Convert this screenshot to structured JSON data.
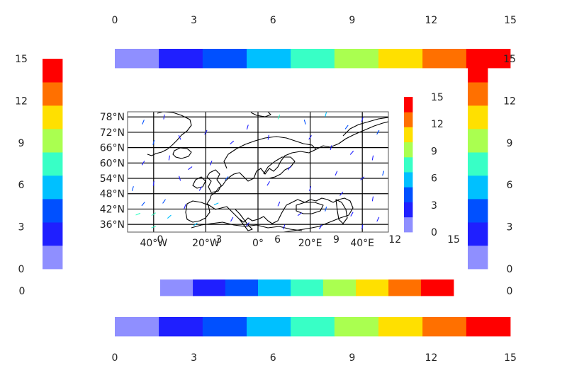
{
  "chart_data": {
    "type": "quiver-map",
    "map": {
      "projection": "PlateCarree",
      "lon_range": [
        -50,
        50
      ],
      "lat_range": [
        33,
        80
      ],
      "lon_ticks": [
        -40,
        -20,
        0,
        20,
        40
      ],
      "lon_tick_labels": [
        "40°W",
        "20°W",
        "0°",
        "20°E",
        "40°E"
      ],
      "lat_ticks": [
        36,
        42,
        48,
        54,
        60,
        66,
        72,
        78
      ],
      "lat_tick_labels": [
        "36°N",
        "42°N",
        "48°N",
        "54°N",
        "60°N",
        "66°N",
        "72°N",
        "78°N"
      ],
      "grid": true,
      "coastlines": true,
      "colormap": "jet",
      "value_range": [
        0,
        15
      ]
    },
    "colorbar": {
      "levels": [
        0,
        1.67,
        3.33,
        5,
        6.67,
        8.33,
        10,
        11.67,
        13.33,
        15
      ],
      "colors": [
        "#8f8fff",
        "#1f1fff",
        "#0050ff",
        "#00c0ff",
        "#38ffc6",
        "#aaff50",
        "#ffe000",
        "#ff7000",
        "#ff0000"
      ],
      "ticks": [
        0,
        3,
        6,
        9,
        12,
        15
      ],
      "tick_labels": [
        "0",
        "3",
        "6",
        "9",
        "12",
        "15"
      ]
    },
    "colorbars": [
      {
        "id": "top",
        "orientation": "horizontal",
        "ticks_side": "top"
      },
      {
        "id": "bottom",
        "orientation": "horizontal",
        "ticks_side": "bottom"
      },
      {
        "id": "left",
        "orientation": "vertical",
        "ticks_side": "left"
      },
      {
        "id": "right",
        "orientation": "vertical",
        "ticks_side": "right"
      },
      {
        "id": "inset-right",
        "orientation": "vertical",
        "ticks_side": "right"
      },
      {
        "id": "inner-bottom",
        "orientation": "horizontal",
        "ticks_side": "top"
      }
    ],
    "extra_labels": [
      {
        "id": "inner-bottom-left-zero",
        "text": "0"
      },
      {
        "id": "inner-bottom-right-zero",
        "text": "0"
      }
    ],
    "arrows": [
      {
        "lon": -46,
        "lat": 40,
        "u": 1.5,
        "v": 0.6,
        "speed": 8
      },
      {
        "lon": -40,
        "lat": 40,
        "u": 1.2,
        "v": 0.8,
        "speed": 7
      },
      {
        "lon": -34,
        "lat": 39,
        "u": 1.0,
        "v": 0.9,
        "speed": 6
      },
      {
        "lon": -44,
        "lat": 44,
        "u": 0.8,
        "v": 1.0,
        "speed": 5
      },
      {
        "lon": -36,
        "lat": 45,
        "u": 0.7,
        "v": 1.0,
        "speed": 4
      },
      {
        "lon": -28,
        "lat": 43,
        "u": 0.4,
        "v": 1.1,
        "speed": 3
      },
      {
        "lon": -48,
        "lat": 50,
        "u": 0.3,
        "v": 1.0,
        "speed": 4
      },
      {
        "lon": -40,
        "lat": 52,
        "u": 0.2,
        "v": 1.2,
        "speed": 2
      },
      {
        "lon": -30,
        "lat": 54,
        "u": -0.3,
        "v": 1.0,
        "speed": 2
      },
      {
        "lon": -22,
        "lat": 50,
        "u": 0.5,
        "v": 0.8,
        "speed": 3
      },
      {
        "lon": -16,
        "lat": 44,
        "u": 0.9,
        "v": 0.4,
        "speed": 6
      },
      {
        "lon": -10,
        "lat": 38,
        "u": 0.5,
        "v": 0.9,
        "speed": 3
      },
      {
        "lon": -44,
        "lat": 60,
        "u": 0.6,
        "v": 1.0,
        "speed": 2
      },
      {
        "lon": -34,
        "lat": 62,
        "u": 0.2,
        "v": 1.1,
        "speed": 2
      },
      {
        "lon": -26,
        "lat": 58,
        "u": 0.8,
        "v": 0.6,
        "speed": 3
      },
      {
        "lon": -18,
        "lat": 60,
        "u": 0.4,
        "v": 1.0,
        "speed": 2
      },
      {
        "lon": -12,
        "lat": 54,
        "u": 0.6,
        "v": 0.7,
        "speed": 4
      },
      {
        "lon": -40,
        "lat": 68,
        "u": 0.3,
        "v": 1.0,
        "speed": 4
      },
      {
        "lon": -30,
        "lat": 70,
        "u": -0.4,
        "v": 0.9,
        "speed": 3
      },
      {
        "lon": -20,
        "lat": 72,
        "u": 0.5,
        "v": 0.9,
        "speed": 2
      },
      {
        "lon": -10,
        "lat": 68,
        "u": 0.7,
        "v": 0.6,
        "speed": 2
      },
      {
        "lon": -44,
        "lat": 76,
        "u": 0.4,
        "v": 1.0,
        "speed": 5
      },
      {
        "lon": -36,
        "lat": 78,
        "u": 0.2,
        "v": 1.1,
        "speed": 2
      },
      {
        "lon": -4,
        "lat": 74,
        "u": 0.3,
        "v": 1.0,
        "speed": 3
      },
      {
        "lon": 4,
        "lat": 70,
        "u": 0.2,
        "v": 1.2,
        "speed": 2
      },
      {
        "lon": 8,
        "lat": 78,
        "u": 0.4,
        "v": 1.0,
        "speed": 8
      },
      {
        "lon": 18,
        "lat": 76,
        "u": -0.3,
        "v": 1.0,
        "speed": 5
      },
      {
        "lon": 26,
        "lat": 79,
        "u": 0.3,
        "v": 1.1,
        "speed": 6
      },
      {
        "lon": 34,
        "lat": 74,
        "u": 0.6,
        "v": 0.8,
        "speed": 4
      },
      {
        "lon": 40,
        "lat": 77,
        "u": 0.3,
        "v": 1.0,
        "speed": 2
      },
      {
        "lon": 46,
        "lat": 72,
        "u": 0.5,
        "v": 0.9,
        "speed": 4
      },
      {
        "lon": 20,
        "lat": 70,
        "u": 0.4,
        "v": 0.6,
        "speed": 2
      },
      {
        "lon": 28,
        "lat": 66,
        "u": 0.3,
        "v": 1.0,
        "speed": 2
      },
      {
        "lon": 36,
        "lat": 64,
        "u": 0.6,
        "v": 0.7,
        "speed": 2
      },
      {
        "lon": 44,
        "lat": 62,
        "u": 0.2,
        "v": 1.0,
        "speed": 3
      },
      {
        "lon": 12,
        "lat": 58,
        "u": 0.6,
        "v": 0.8,
        "speed": 3
      },
      {
        "lon": 30,
        "lat": 56,
        "u": 0.4,
        "v": 0.9,
        "speed": 2
      },
      {
        "lon": 40,
        "lat": 54,
        "u": 0.7,
        "v": 0.6,
        "speed": 2
      },
      {
        "lon": 48,
        "lat": 56,
        "u": 0.3,
        "v": 1.0,
        "speed": 4
      },
      {
        "lon": 4,
        "lat": 52,
        "u": 0.5,
        "v": 0.8,
        "speed": 2
      },
      {
        "lon": 20,
        "lat": 50,
        "u": 0.3,
        "v": 1.0,
        "speed": 3
      },
      {
        "lon": 32,
        "lat": 48,
        "u": 0.6,
        "v": 0.7,
        "speed": 2
      },
      {
        "lon": 44,
        "lat": 46,
        "u": 0.2,
        "v": 1.1,
        "speed": 3
      },
      {
        "lon": 8,
        "lat": 44,
        "u": 0.4,
        "v": 0.9,
        "speed": 3
      },
      {
        "lon": 16,
        "lat": 40,
        "u": 0.7,
        "v": 0.5,
        "speed": 2
      },
      {
        "lon": 26,
        "lat": 42,
        "u": 0.3,
        "v": 1.0,
        "speed": 4
      },
      {
        "lon": 36,
        "lat": 40,
        "u": 0.5,
        "v": 0.9,
        "speed": 2
      },
      {
        "lon": 46,
        "lat": 38,
        "u": 0.4,
        "v": 0.8,
        "speed": 3
      },
      {
        "lon": -4,
        "lat": 36,
        "u": 0.6,
        "v": 0.7,
        "speed": 2
      },
      {
        "lon": 10,
        "lat": 35,
        "u": 0.3,
        "v": 1.0,
        "speed": 3
      },
      {
        "lon": 24,
        "lat": 35,
        "u": 0.5,
        "v": 0.8,
        "speed": 2
      },
      {
        "lon": 40,
        "lat": 35,
        "u": 0.2,
        "v": 1.0,
        "speed": 2
      },
      {
        "lon": -24,
        "lat": 36,
        "u": 0.8,
        "v": 0.6,
        "speed": 6
      },
      {
        "lon": -40,
        "lat": 35,
        "u": 1.2,
        "v": 0.5,
        "speed": 8
      }
    ]
  }
}
